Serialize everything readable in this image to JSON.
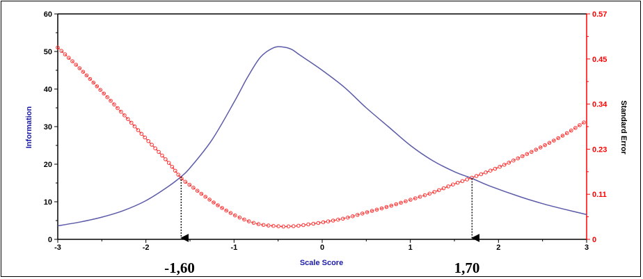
{
  "chart_data": {
    "type": "line",
    "xlabel": "Scale Score",
    "ylabel": "Information",
    "y2label": "Standard Error",
    "xlim": [
      -3,
      3
    ],
    "ylim": [
      0,
      60
    ],
    "y2lim": [
      0,
      0.57
    ],
    "x_ticks": [
      "-3",
      "-2",
      "-1",
      "0",
      "1",
      "2",
      "3"
    ],
    "y_ticks": [
      "0",
      "10",
      "20",
      "30",
      "40",
      "50",
      "60"
    ],
    "y2_ticks": [
      "0",
      "0.11",
      "0.23",
      "0.34",
      "0.45",
      "0.57"
    ],
    "grid": false,
    "colors": {
      "information": "#5a5aa8",
      "standard_error": "#ff3030",
      "axis_left": "#000000",
      "axis_right": "#ff0000"
    },
    "series": [
      {
        "axis": "left",
        "style": "solid",
        "x": [
          -3,
          -2.75,
          -2.5,
          -2.25,
          -2,
          -1.75,
          -1.6,
          -1.5,
          -1.25,
          -1,
          -0.85,
          -0.7,
          -0.55,
          -0.45,
          -0.35,
          -0.25,
          0,
          0.25,
          0.5,
          0.75,
          1,
          1.25,
          1.5,
          1.7,
          1.9,
          2.25,
          2.5,
          2.75,
          3
        ],
        "values": [
          3.6,
          4.6,
          5.9,
          7.7,
          10.3,
          14.0,
          16.7,
          19.0,
          26.5,
          36.5,
          43.0,
          48.5,
          51.0,
          51.2,
          50.6,
          49.0,
          45.0,
          40.5,
          35.0,
          30.0,
          25.0,
          21.0,
          18.0,
          16.2,
          14.2,
          11.3,
          9.5,
          8.0,
          6.6
        ]
      },
      {
        "axis": "right",
        "style": "dashed-markers",
        "x": [
          -3,
          -2.75,
          -2.5,
          -2.25,
          -2,
          -1.75,
          -1.6,
          -1.5,
          -1.25,
          -1,
          -0.75,
          -0.5,
          -0.35,
          -0.25,
          0,
          0.25,
          0.5,
          0.75,
          1,
          1.25,
          1.5,
          1.7,
          2,
          2.25,
          2.5,
          2.75,
          3
        ],
        "values": [
          0.485,
          0.432,
          0.374,
          0.315,
          0.255,
          0.196,
          0.155,
          0.137,
          0.096,
          0.062,
          0.04,
          0.033,
          0.033,
          0.035,
          0.043,
          0.053,
          0.068,
          0.083,
          0.1,
          0.118,
          0.14,
          0.156,
          0.182,
          0.208,
          0.235,
          0.265,
          0.3
        ]
      }
    ],
    "annotations": [
      {
        "x": -1.6,
        "label": "-1,60"
      },
      {
        "x": 1.7,
        "label": "1,70"
      }
    ]
  }
}
